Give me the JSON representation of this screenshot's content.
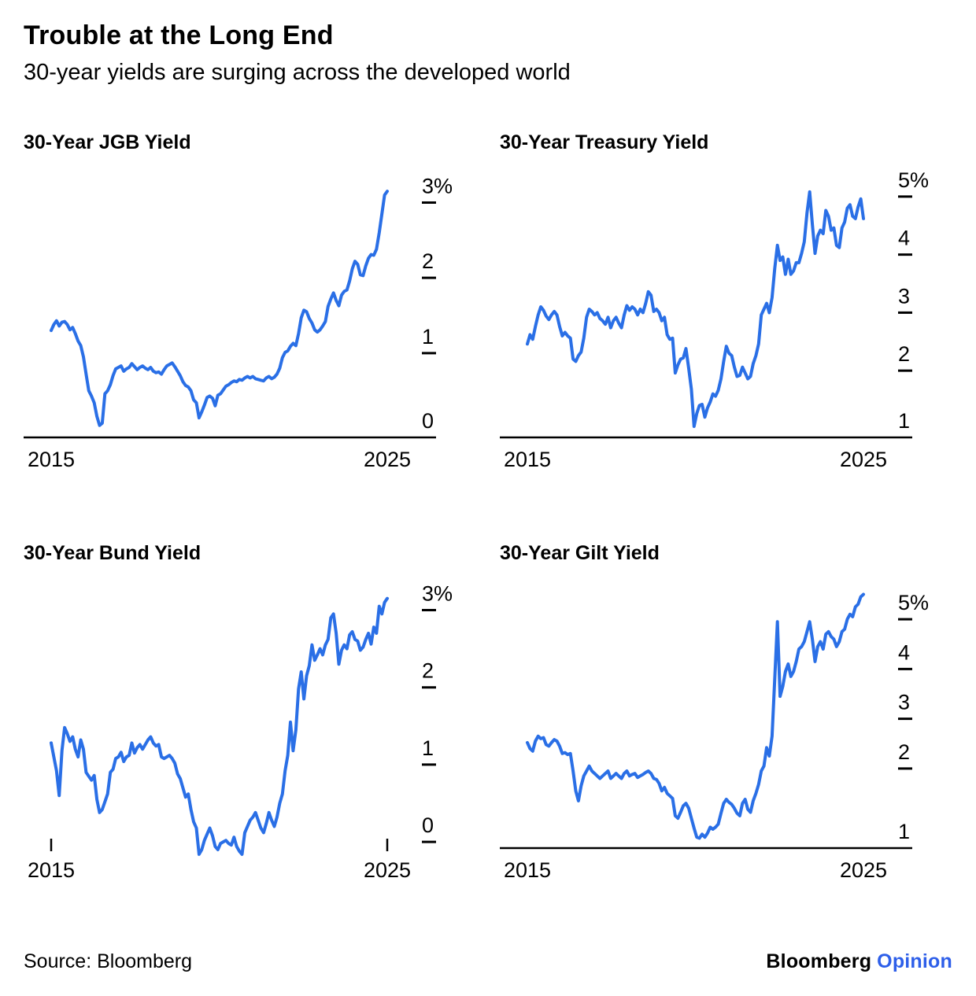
{
  "header": {
    "title": "Trouble at the Long End",
    "subtitle": "30-year yields are surging across the developed world"
  },
  "footer": {
    "source": "Source: Bloomberg",
    "logo": {
      "brand": "Bloomberg",
      "suffix": "Opinion"
    }
  },
  "colors": {
    "line": "#2A6FE6",
    "axis": "#000000",
    "text": "#000000",
    "opinion_blue": "#2E5FE9"
  },
  "chart_data": [
    {
      "type": "line",
      "title": "30-Year JGB Yield",
      "unit": "%",
      "x_ticks": [
        "2015",
        "2025"
      ],
      "x_range": [
        2015.0,
        2025.5
      ],
      "ylim": [
        -0.12,
        3.35
      ],
      "baseline": true,
      "y_ticks": [
        {
          "value": 3,
          "label": "3%"
        },
        {
          "value": 2,
          "label": "2"
        },
        {
          "value": 1,
          "label": "1"
        },
        {
          "value": 0,
          "label": "0"
        }
      ],
      "values": [
        1.3,
        1.38,
        1.43,
        1.36,
        1.41,
        1.42,
        1.38,
        1.31,
        1.34,
        1.26,
        1.16,
        1.1,
        0.95,
        0.72,
        0.5,
        0.43,
        0.34,
        0.16,
        0.04,
        0.07,
        0.46,
        0.5,
        0.58,
        0.7,
        0.79,
        0.81,
        0.83,
        0.76,
        0.79,
        0.81,
        0.86,
        0.82,
        0.78,
        0.81,
        0.83,
        0.8,
        0.78,
        0.81,
        0.76,
        0.74,
        0.75,
        0.72,
        0.78,
        0.83,
        0.85,
        0.87,
        0.82,
        0.76,
        0.7,
        0.62,
        0.57,
        0.55,
        0.5,
        0.38,
        0.34,
        0.14,
        0.22,
        0.31,
        0.41,
        0.43,
        0.4,
        0.3,
        0.44,
        0.46,
        0.51,
        0.56,
        0.58,
        0.61,
        0.63,
        0.62,
        0.65,
        0.64,
        0.67,
        0.69,
        0.67,
        0.69,
        0.66,
        0.65,
        0.64,
        0.63,
        0.67,
        0.69,
        0.66,
        0.68,
        0.72,
        0.8,
        0.94,
        1.01,
        1.03,
        1.09,
        1.13,
        1.1,
        1.26,
        1.47,
        1.57,
        1.55,
        1.46,
        1.4,
        1.31,
        1.28,
        1.31,
        1.36,
        1.42,
        1.62,
        1.72,
        1.8,
        1.7,
        1.63,
        1.77,
        1.82,
        1.84,
        1.96,
        2.12,
        2.22,
        2.18,
        2.04,
        2.03,
        2.16,
        2.26,
        2.31,
        2.3,
        2.38,
        2.6,
        2.85,
        3.1,
        3.15
      ]
    },
    {
      "type": "line",
      "title": "30-Year Treasury Yield",
      "unit": "%",
      "x_ticks": [
        "2015",
        "2025"
      ],
      "x_range": [
        2015.0,
        2025.5
      ],
      "ylim": [
        0.85,
        5.35
      ],
      "baseline": true,
      "y_ticks": [
        {
          "value": 5,
          "label": "5%"
        },
        {
          "value": 4,
          "label": "4"
        },
        {
          "value": 3,
          "label": "3"
        },
        {
          "value": 2,
          "label": "2"
        },
        {
          "value": 1,
          "label": "1"
        }
      ],
      "values": [
        2.46,
        2.62,
        2.54,
        2.76,
        2.96,
        3.1,
        3.04,
        2.94,
        2.88,
        2.96,
        3.02,
        2.96,
        2.76,
        2.6,
        2.66,
        2.6,
        2.56,
        2.2,
        2.16,
        2.26,
        2.32,
        2.56,
        2.92,
        3.06,
        3.02,
        2.96,
        3.0,
        2.9,
        2.86,
        2.8,
        2.92,
        2.74,
        2.86,
        2.92,
        2.82,
        2.74,
        2.96,
        3.12,
        3.04,
        3.1,
        3.06,
        2.96,
        3.06,
        3.0,
        3.16,
        3.36,
        3.3,
        3.02,
        3.06,
        3.0,
        2.86,
        2.92,
        2.62,
        2.54,
        2.56,
        1.96,
        2.1,
        2.2,
        2.22,
        2.38,
        2.04,
        1.68,
        1.04,
        1.26,
        1.4,
        1.42,
        1.2,
        1.36,
        1.46,
        1.6,
        1.56,
        1.66,
        1.86,
        2.16,
        2.42,
        2.3,
        2.26,
        2.06,
        1.9,
        1.92,
        2.06,
        1.96,
        1.86,
        1.9,
        2.12,
        2.26,
        2.46,
        2.96,
        3.06,
        3.16,
        3.0,
        3.26,
        3.76,
        4.16,
        3.9,
        3.96,
        3.66,
        3.92,
        3.66,
        3.72,
        3.86,
        3.86,
        4.02,
        4.22,
        4.72,
        5.08,
        4.52,
        4.02,
        4.32,
        4.42,
        4.36,
        4.76,
        4.66,
        4.42,
        4.46,
        4.16,
        4.12,
        4.46,
        4.56,
        4.8,
        4.86,
        4.66,
        4.62,
        4.82,
        4.96,
        4.62
      ]
    },
    {
      "type": "line",
      "title": "30-Year Bund Yield",
      "unit": "%",
      "x_ticks": [
        "2015",
        "2025"
      ],
      "x_range": [
        2015.0,
        2025.5
      ],
      "ylim": [
        -0.08,
        3.3
      ],
      "baseline": false,
      "y_ticks": [
        {
          "value": 3,
          "label": "3%"
        },
        {
          "value": 2,
          "label": "2"
        },
        {
          "value": 1,
          "label": "1"
        },
        {
          "value": 0,
          "label": "0"
        }
      ],
      "values": [
        1.28,
        1.1,
        0.92,
        0.6,
        1.18,
        1.48,
        1.4,
        1.3,
        1.36,
        1.2,
        1.1,
        1.32,
        1.2,
        0.9,
        0.85,
        0.8,
        0.86,
        0.55,
        0.38,
        0.42,
        0.52,
        0.62,
        0.9,
        0.94,
        1.08,
        1.1,
        1.16,
        1.04,
        1.1,
        1.12,
        1.28,
        1.15,
        1.22,
        1.26,
        1.2,
        1.26,
        1.32,
        1.36,
        1.28,
        1.24,
        1.26,
        1.1,
        1.08,
        1.1,
        1.12,
        1.08,
        1.02,
        0.88,
        0.82,
        0.7,
        0.58,
        0.62,
        0.42,
        0.26,
        0.18,
        -0.16,
        -0.1,
        0.02,
        0.1,
        0.18,
        0.08,
        -0.06,
        -0.1,
        -0.02,
        0.0,
        0.02,
        -0.02,
        -0.04,
        0.06,
        -0.06,
        -0.12,
        -0.16,
        0.12,
        0.2,
        0.28,
        0.32,
        0.38,
        0.28,
        0.18,
        0.12,
        0.24,
        0.38,
        0.28,
        0.2,
        0.32,
        0.5,
        0.62,
        0.92,
        1.12,
        1.55,
        1.18,
        1.45,
        1.98,
        2.2,
        1.85,
        2.15,
        2.28,
        2.55,
        2.35,
        2.42,
        2.5,
        2.42,
        2.55,
        2.62,
        2.9,
        2.95,
        2.7,
        2.3,
        2.48,
        2.55,
        2.5,
        2.68,
        2.72,
        2.62,
        2.6,
        2.48,
        2.52,
        2.62,
        2.7,
        2.56,
        2.78,
        2.7,
        3.05,
        2.95,
        3.1,
        3.15
      ]
    },
    {
      "type": "line",
      "title": "30-Year Gilt Yield",
      "unit": "%",
      "x_ticks": [
        "2015",
        "2025"
      ],
      "x_range": [
        2015.0,
        2025.5
      ],
      "ylim": [
        0.4,
        5.65
      ],
      "baseline": true,
      "y_ticks": [
        {
          "value": 5,
          "label": "5%"
        },
        {
          "value": 4,
          "label": "4"
        },
        {
          "value": 3,
          "label": "3"
        },
        {
          "value": 2,
          "label": "2"
        },
        {
          "value": 1,
          "label": "1"
        }
      ],
      "values": [
        2.52,
        2.4,
        2.35,
        2.55,
        2.65,
        2.6,
        2.62,
        2.48,
        2.45,
        2.52,
        2.58,
        2.55,
        2.45,
        2.3,
        2.32,
        2.28,
        2.3,
        1.95,
        1.55,
        1.35,
        1.65,
        1.85,
        1.95,
        2.05,
        1.95,
        1.9,
        1.85,
        1.8,
        1.85,
        1.9,
        1.95,
        1.8,
        1.85,
        1.9,
        1.85,
        1.8,
        1.9,
        1.95,
        1.85,
        1.88,
        1.9,
        1.82,
        1.85,
        1.88,
        1.92,
        1.95,
        1.9,
        1.8,
        1.78,
        1.7,
        1.55,
        1.62,
        1.5,
        1.45,
        1.4,
        1.05,
        1.0,
        1.12,
        1.25,
        1.3,
        1.2,
        1.0,
        0.8,
        0.62,
        0.6,
        0.68,
        0.62,
        0.7,
        0.82,
        0.78,
        0.82,
        0.88,
        1.1,
        1.3,
        1.38,
        1.32,
        1.28,
        1.2,
        1.1,
        1.05,
        1.3,
        1.38,
        1.18,
        1.12,
        1.35,
        1.5,
        1.68,
        1.95,
        2.05,
        2.42,
        2.25,
        2.65,
        3.8,
        4.95,
        3.45,
        3.65,
        3.95,
        4.1,
        3.85,
        3.95,
        4.15,
        4.4,
        4.45,
        4.55,
        4.75,
        4.95,
        4.6,
        4.15,
        4.45,
        4.55,
        4.4,
        4.7,
        4.75,
        4.65,
        4.6,
        4.45,
        4.55,
        4.75,
        4.8,
        5.0,
        5.1,
        5.05,
        5.25,
        5.3,
        5.45,
        5.5
      ]
    }
  ]
}
